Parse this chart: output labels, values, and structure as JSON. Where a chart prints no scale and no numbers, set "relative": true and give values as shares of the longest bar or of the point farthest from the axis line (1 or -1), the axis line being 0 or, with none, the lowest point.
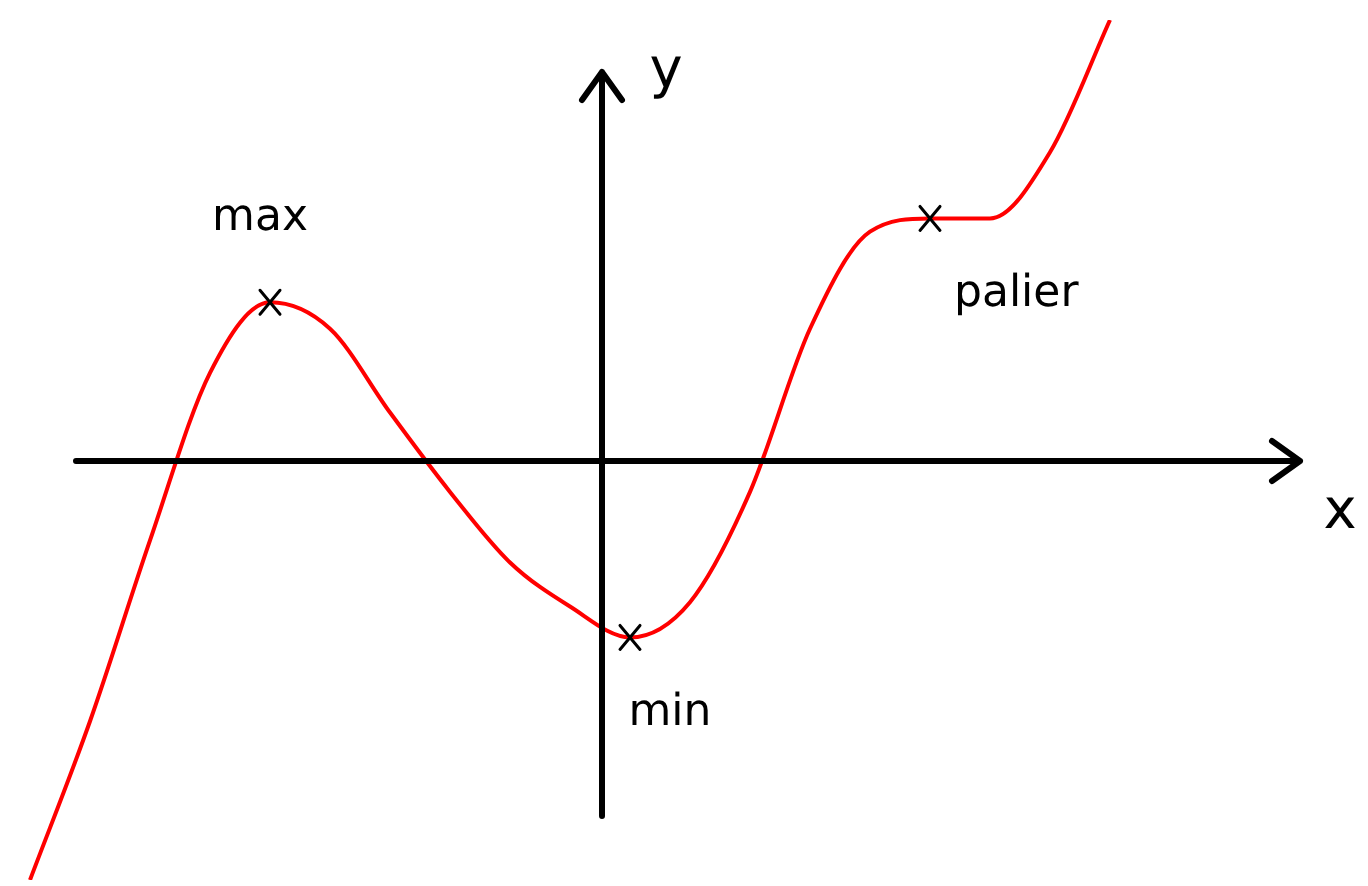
{
  "chart_data": {
    "type": "line",
    "relative": true,
    "xlabel": "x",
    "ylabel": "y",
    "categories": [
      null,
      null,
      null,
      null,
      null,
      null,
      null,
      null,
      null,
      null,
      null,
      null,
      null,
      null,
      null,
      null,
      null,
      null,
      null
    ],
    "series": [
      {
        "color": "#ff0000",
        "values": [
          -0.95,
          -0.59,
          -0.18,
          0.2,
          0.36,
          0.3,
          0.11,
          -0.07,
          -0.23,
          -0.33,
          -0.4,
          -0.32,
          -0.07,
          0.3,
          0.52,
          0.55,
          0.55,
          0.7,
          1
        ]
      }
    ],
    "annotations": [
      "max",
      "min",
      "palier"
    ],
    "marker": "none",
    "legend": false,
    "tick_labels": false
  }
}
